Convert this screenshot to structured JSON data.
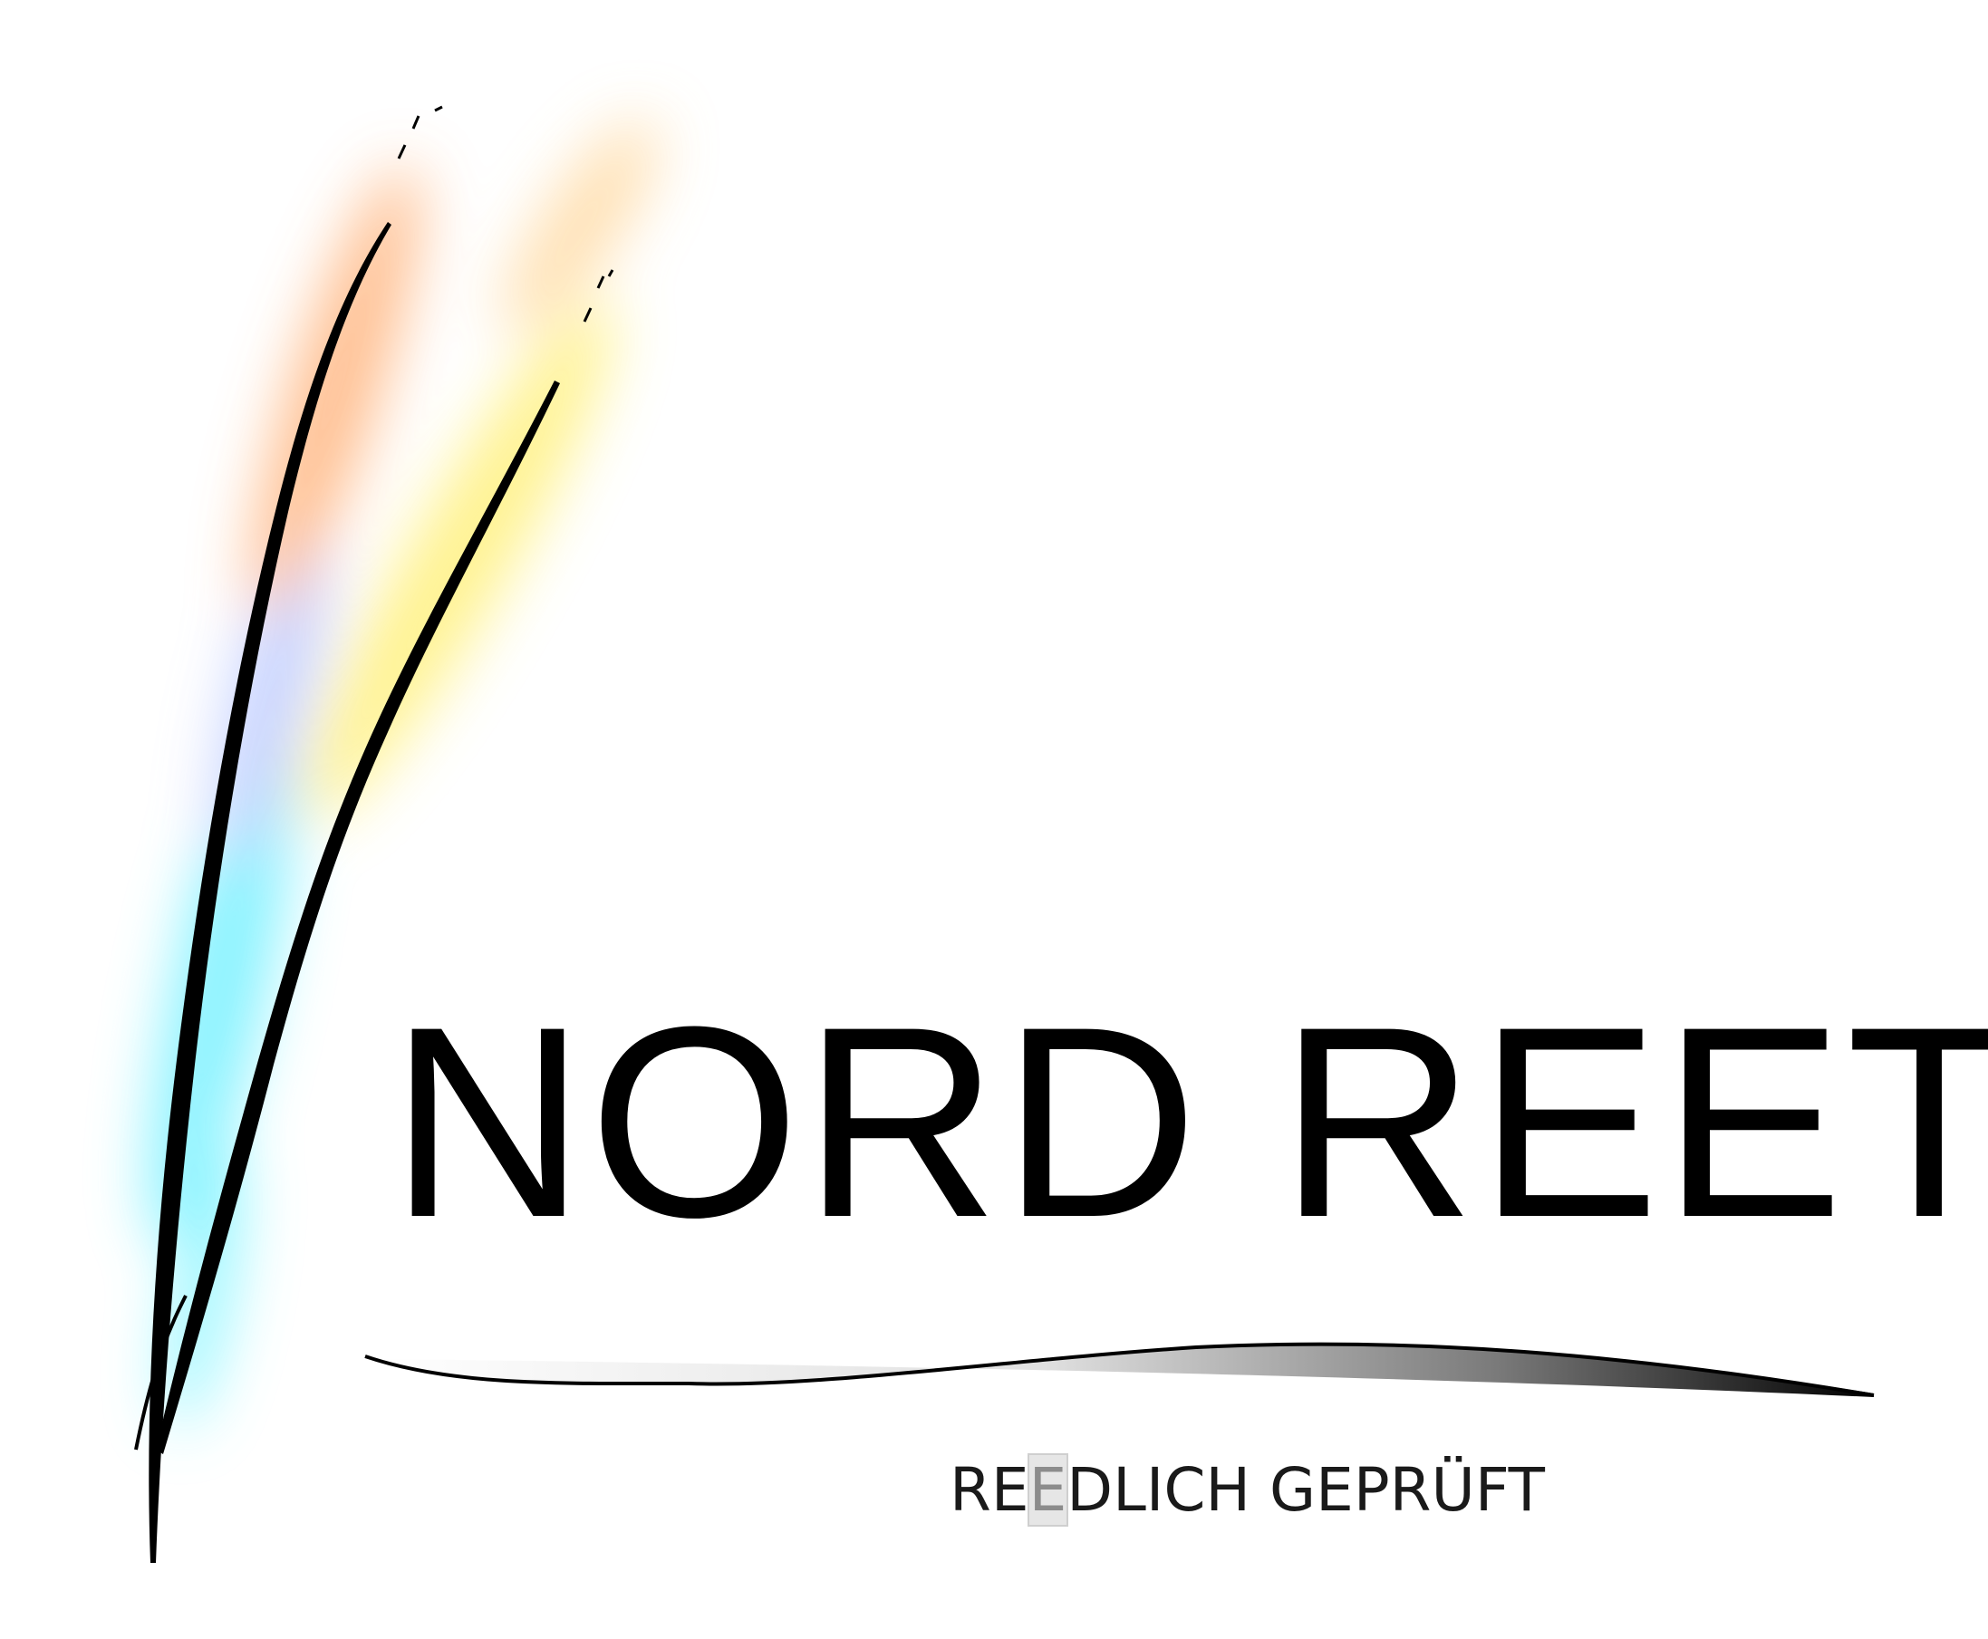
{
  "logo": {
    "icon": "reed-stalks-icon",
    "wordmark": "NORD REET",
    "tagline_before": "RE",
    "tagline_highlight": "E",
    "tagline_after": "DLICH GEPRÜFT",
    "colors": {
      "wordmark": "#000000",
      "tagline": "#1a1a1a",
      "tagline_highlight": "#8c8c8c",
      "swoosh_dark": "#000000",
      "swoosh_light": "#ececec",
      "glow_cyan": "#6ff0ff",
      "glow_orange": "#ffb27a",
      "glow_yellow": "#fff07a"
    }
  }
}
